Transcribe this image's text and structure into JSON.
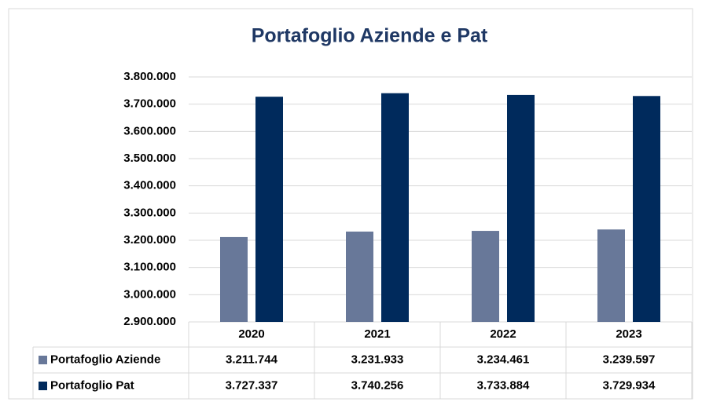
{
  "chart_data": {
    "type": "bar",
    "title": "Portafoglio Aziende e Pat",
    "categories": [
      "2020",
      "2021",
      "2022",
      "2023"
    ],
    "series": [
      {
        "name": "Portafoglio Aziende",
        "color": "#687899",
        "values": [
          3211744,
          3231933,
          3234461,
          3239597
        ],
        "value_labels": [
          "3.211.744",
          "3.231.933",
          "3.234.461",
          "3.239.597"
        ]
      },
      {
        "name": "Portafoglio Pat",
        "color": "#002a5c",
        "values": [
          3727337,
          3740256,
          3733884,
          3729934
        ],
        "value_labels": [
          "3.727.337",
          "3.740.256",
          "3.733.884",
          "3.729.934"
        ]
      }
    ],
    "ylim": [
      2900000,
      3800000
    ],
    "yticks": [
      {
        "value": 2900000,
        "label": "2.900.000"
      },
      {
        "value": 3000000,
        "label": "3.000.000"
      },
      {
        "value": 3100000,
        "label": "3.100.000"
      },
      {
        "value": 3200000,
        "label": "3.200.000"
      },
      {
        "value": 3300000,
        "label": "3.300.000"
      },
      {
        "value": 3400000,
        "label": "3.400.000"
      },
      {
        "value": 3500000,
        "label": "3.500.000"
      },
      {
        "value": 3600000,
        "label": "3.600.000"
      },
      {
        "value": 3700000,
        "label": "3.700.000"
      },
      {
        "value": 3800000,
        "label": "3.800.000"
      }
    ],
    "grid": true
  }
}
